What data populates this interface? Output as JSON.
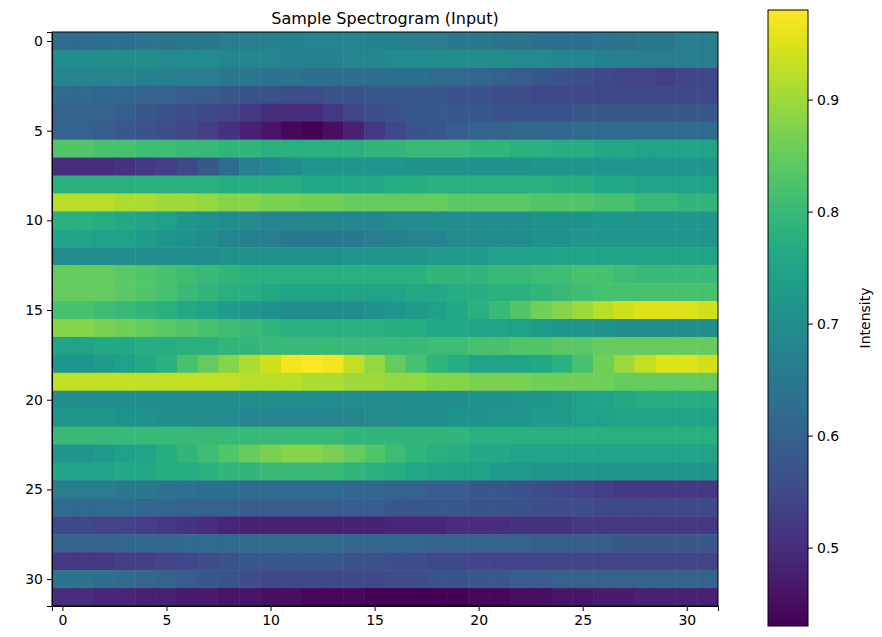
{
  "chart_data": {
    "type": "heatmap",
    "title": "Sample Spectrogram (Input)",
    "xlim": [
      -0.5,
      31.5
    ],
    "ylim": [
      31.5,
      -0.5
    ],
    "xticks": [
      0,
      5,
      10,
      15,
      20,
      25,
      30
    ],
    "yticks": [
      0,
      5,
      10,
      15,
      20,
      25,
      30
    ],
    "color": "viridis",
    "colorbar": {
      "label": "Intensity",
      "range": [
        0.43,
        0.98
      ],
      "ticks": [
        0.5,
        0.6,
        0.7,
        0.8,
        0.9
      ]
    },
    "values": [
      [
        0.62,
        0.62,
        0.63,
        0.63,
        0.64,
        0.64,
        0.65,
        0.65,
        0.66,
        0.66,
        0.67,
        0.67,
        0.68,
        0.68,
        0.68,
        0.67,
        0.67,
        0.66,
        0.66,
        0.65,
        0.65,
        0.64,
        0.64,
        0.63,
        0.63,
        0.63,
        0.64,
        0.64,
        0.65,
        0.65,
        0.66,
        0.66
      ],
      [
        0.7,
        0.7,
        0.7,
        0.7,
        0.7,
        0.69,
        0.69,
        0.69,
        0.68,
        0.68,
        0.68,
        0.67,
        0.67,
        0.67,
        0.68,
        0.68,
        0.69,
        0.69,
        0.7,
        0.7,
        0.7,
        0.7,
        0.69,
        0.69,
        0.68,
        0.68,
        0.67,
        0.67,
        0.66,
        0.66,
        0.66,
        0.66
      ],
      [
        0.68,
        0.68,
        0.68,
        0.68,
        0.67,
        0.67,
        0.66,
        0.66,
        0.65,
        0.65,
        0.64,
        0.64,
        0.63,
        0.63,
        0.63,
        0.63,
        0.63,
        0.63,
        0.62,
        0.62,
        0.61,
        0.6,
        0.59,
        0.58,
        0.57,
        0.56,
        0.55,
        0.54,
        0.54,
        0.53,
        0.54,
        0.55
      ],
      [
        0.62,
        0.62,
        0.61,
        0.61,
        0.6,
        0.6,
        0.59,
        0.59,
        0.58,
        0.57,
        0.57,
        0.56,
        0.56,
        0.57,
        0.57,
        0.58,
        0.58,
        0.58,
        0.58,
        0.57,
        0.57,
        0.56,
        0.56,
        0.55,
        0.55,
        0.55,
        0.55,
        0.55,
        0.55,
        0.55,
        0.55,
        0.55
      ],
      [
        0.6,
        0.6,
        0.6,
        0.59,
        0.58,
        0.57,
        0.56,
        0.55,
        0.54,
        0.52,
        0.5,
        0.5,
        0.5,
        0.52,
        0.54,
        0.56,
        0.57,
        0.58,
        0.58,
        0.58,
        0.58,
        0.57,
        0.57,
        0.57,
        0.57,
        0.58,
        0.58,
        0.58,
        0.58,
        0.58,
        0.58,
        0.58
      ],
      [
        0.6,
        0.6,
        0.59,
        0.58,
        0.57,
        0.56,
        0.55,
        0.53,
        0.51,
        0.48,
        0.46,
        0.44,
        0.43,
        0.45,
        0.48,
        0.52,
        0.55,
        0.57,
        0.58,
        0.59,
        0.6,
        0.6,
        0.61,
        0.61,
        0.61,
        0.62,
        0.62,
        0.62,
        0.62,
        0.62,
        0.62,
        0.62
      ],
      [
        0.83,
        0.83,
        0.82,
        0.82,
        0.81,
        0.81,
        0.8,
        0.8,
        0.79,
        0.79,
        0.78,
        0.78,
        0.78,
        0.78,
        0.78,
        0.79,
        0.79,
        0.8,
        0.8,
        0.8,
        0.79,
        0.79,
        0.78,
        0.78,
        0.77,
        0.77,
        0.76,
        0.76,
        0.75,
        0.75,
        0.75,
        0.75
      ],
      [
        0.5,
        0.5,
        0.5,
        0.51,
        0.52,
        0.53,
        0.55,
        0.58,
        0.62,
        0.66,
        0.68,
        0.7,
        0.72,
        0.72,
        0.72,
        0.72,
        0.72,
        0.71,
        0.71,
        0.71,
        0.71,
        0.71,
        0.71,
        0.72,
        0.72,
        0.72,
        0.72,
        0.72,
        0.72,
        0.72,
        0.72,
        0.72
      ],
      [
        0.78,
        0.78,
        0.78,
        0.78,
        0.78,
        0.78,
        0.78,
        0.78,
        0.77,
        0.77,
        0.77,
        0.77,
        0.76,
        0.76,
        0.76,
        0.76,
        0.77,
        0.77,
        0.78,
        0.78,
        0.78,
        0.78,
        0.78,
        0.78,
        0.77,
        0.77,
        0.76,
        0.76,
        0.75,
        0.75,
        0.75,
        0.75
      ],
      [
        0.92,
        0.92,
        0.92,
        0.91,
        0.91,
        0.9,
        0.9,
        0.89,
        0.88,
        0.88,
        0.87,
        0.87,
        0.86,
        0.86,
        0.85,
        0.85,
        0.85,
        0.85,
        0.85,
        0.84,
        0.84,
        0.84,
        0.84,
        0.83,
        0.83,
        0.83,
        0.82,
        0.82,
        0.8,
        0.8,
        0.79,
        0.79
      ],
      [
        0.78,
        0.78,
        0.77,
        0.76,
        0.75,
        0.74,
        0.72,
        0.71,
        0.7,
        0.69,
        0.68,
        0.68,
        0.68,
        0.68,
        0.68,
        0.68,
        0.69,
        0.69,
        0.7,
        0.7,
        0.7,
        0.7,
        0.7,
        0.71,
        0.71,
        0.71,
        0.72,
        0.72,
        0.72,
        0.72,
        0.72,
        0.72
      ],
      [
        0.75,
        0.75,
        0.74,
        0.74,
        0.73,
        0.72,
        0.71,
        0.7,
        0.68,
        0.67,
        0.66,
        0.65,
        0.65,
        0.65,
        0.65,
        0.66,
        0.67,
        0.68,
        0.68,
        0.69,
        0.69,
        0.7,
        0.7,
        0.71,
        0.71,
        0.72,
        0.72,
        0.72,
        0.72,
        0.72,
        0.72,
        0.72
      ],
      [
        0.7,
        0.7,
        0.7,
        0.7,
        0.7,
        0.7,
        0.7,
        0.7,
        0.71,
        0.71,
        0.71,
        0.71,
        0.71,
        0.71,
        0.72,
        0.72,
        0.72,
        0.72,
        0.73,
        0.73,
        0.73,
        0.74,
        0.74,
        0.74,
        0.75,
        0.75,
        0.75,
        0.75,
        0.75,
        0.75,
        0.75,
        0.75
      ],
      [
        0.85,
        0.85,
        0.85,
        0.84,
        0.83,
        0.82,
        0.81,
        0.8,
        0.79,
        0.78,
        0.78,
        0.78,
        0.78,
        0.78,
        0.78,
        0.78,
        0.78,
        0.78,
        0.79,
        0.79,
        0.79,
        0.8,
        0.8,
        0.81,
        0.81,
        0.82,
        0.82,
        0.81,
        0.8,
        0.8,
        0.8,
        0.8
      ],
      [
        0.85,
        0.85,
        0.85,
        0.84,
        0.83,
        0.82,
        0.8,
        0.79,
        0.78,
        0.77,
        0.76,
        0.75,
        0.75,
        0.75,
        0.75,
        0.75,
        0.75,
        0.76,
        0.76,
        0.77,
        0.77,
        0.78,
        0.78,
        0.79,
        0.8,
        0.81,
        0.82,
        0.82,
        0.82,
        0.82,
        0.82,
        0.82
      ],
      [
        0.82,
        0.82,
        0.81,
        0.8,
        0.79,
        0.78,
        0.76,
        0.75,
        0.73,
        0.72,
        0.71,
        0.7,
        0.7,
        0.7,
        0.7,
        0.71,
        0.72,
        0.73,
        0.74,
        0.76,
        0.78,
        0.8,
        0.83,
        0.86,
        0.88,
        0.9,
        0.92,
        0.94,
        0.95,
        0.95,
        0.95,
        0.94
      ],
      [
        0.88,
        0.88,
        0.87,
        0.86,
        0.85,
        0.84,
        0.83,
        0.82,
        0.81,
        0.8,
        0.79,
        0.78,
        0.78,
        0.78,
        0.78,
        0.78,
        0.77,
        0.77,
        0.76,
        0.76,
        0.75,
        0.75,
        0.74,
        0.73,
        0.72,
        0.72,
        0.71,
        0.7,
        0.7,
        0.7,
        0.7,
        0.7
      ],
      [
        0.75,
        0.75,
        0.76,
        0.76,
        0.77,
        0.77,
        0.78,
        0.78,
        0.79,
        0.79,
        0.8,
        0.8,
        0.8,
        0.8,
        0.8,
        0.8,
        0.8,
        0.8,
        0.81,
        0.81,
        0.82,
        0.82,
        0.83,
        0.83,
        0.84,
        0.84,
        0.85,
        0.85,
        0.85,
        0.85,
        0.85,
        0.85
      ],
      [
        0.72,
        0.72,
        0.73,
        0.74,
        0.76,
        0.78,
        0.82,
        0.85,
        0.88,
        0.91,
        0.94,
        0.97,
        0.98,
        0.97,
        0.93,
        0.89,
        0.85,
        0.82,
        0.79,
        0.77,
        0.75,
        0.75,
        0.75,
        0.76,
        0.78,
        0.82,
        0.86,
        0.9,
        0.93,
        0.95,
        0.95,
        0.94
      ],
      [
        0.93,
        0.93,
        0.93,
        0.93,
        0.93,
        0.93,
        0.93,
        0.93,
        0.93,
        0.92,
        0.92,
        0.92,
        0.91,
        0.91,
        0.9,
        0.9,
        0.89,
        0.89,
        0.88,
        0.88,
        0.87,
        0.87,
        0.87,
        0.86,
        0.86,
        0.86,
        0.86,
        0.85,
        0.85,
        0.85,
        0.85,
        0.85
      ],
      [
        0.7,
        0.7,
        0.7,
        0.7,
        0.7,
        0.7,
        0.7,
        0.7,
        0.7,
        0.7,
        0.7,
        0.7,
        0.7,
        0.69,
        0.69,
        0.69,
        0.69,
        0.7,
        0.7,
        0.7,
        0.71,
        0.71,
        0.72,
        0.72,
        0.73,
        0.74,
        0.75,
        0.76,
        0.77,
        0.77,
        0.77,
        0.77
      ],
      [
        0.72,
        0.72,
        0.72,
        0.71,
        0.71,
        0.7,
        0.7,
        0.69,
        0.69,
        0.68,
        0.68,
        0.68,
        0.68,
        0.68,
        0.68,
        0.69,
        0.69,
        0.7,
        0.7,
        0.71,
        0.71,
        0.72,
        0.72,
        0.73,
        0.73,
        0.74,
        0.74,
        0.75,
        0.75,
        0.75,
        0.75,
        0.75
      ],
      [
        0.8,
        0.8,
        0.8,
        0.8,
        0.8,
        0.8,
        0.8,
        0.8,
        0.8,
        0.8,
        0.8,
        0.8,
        0.8,
        0.8,
        0.79,
        0.79,
        0.79,
        0.79,
        0.79,
        0.79,
        0.78,
        0.78,
        0.78,
        0.78,
        0.78,
        0.78,
        0.78,
        0.78,
        0.78,
        0.78,
        0.78,
        0.78
      ],
      [
        0.72,
        0.72,
        0.73,
        0.74,
        0.75,
        0.77,
        0.79,
        0.81,
        0.83,
        0.85,
        0.87,
        0.88,
        0.88,
        0.87,
        0.85,
        0.83,
        0.81,
        0.79,
        0.78,
        0.77,
        0.76,
        0.76,
        0.75,
        0.75,
        0.75,
        0.75,
        0.75,
        0.75,
        0.75,
        0.75,
        0.75,
        0.75
      ],
      [
        0.75,
        0.75,
        0.75,
        0.76,
        0.76,
        0.77,
        0.77,
        0.78,
        0.79,
        0.79,
        0.8,
        0.8,
        0.8,
        0.8,
        0.79,
        0.78,
        0.77,
        0.76,
        0.75,
        0.74,
        0.74,
        0.73,
        0.73,
        0.72,
        0.72,
        0.72,
        0.72,
        0.72,
        0.72,
        0.72,
        0.72,
        0.72
      ],
      [
        0.66,
        0.66,
        0.66,
        0.65,
        0.65,
        0.64,
        0.64,
        0.63,
        0.63,
        0.62,
        0.62,
        0.62,
        0.62,
        0.62,
        0.61,
        0.61,
        0.6,
        0.6,
        0.59,
        0.59,
        0.58,
        0.58,
        0.57,
        0.56,
        0.55,
        0.54,
        0.53,
        0.52,
        0.52,
        0.52,
        0.52,
        0.52
      ],
      [
        0.62,
        0.62,
        0.62,
        0.62,
        0.61,
        0.61,
        0.6,
        0.6,
        0.6,
        0.59,
        0.59,
        0.59,
        0.59,
        0.59,
        0.59,
        0.59,
        0.58,
        0.58,
        0.58,
        0.58,
        0.57,
        0.57,
        0.57,
        0.56,
        0.56,
        0.56,
        0.55,
        0.55,
        0.55,
        0.55,
        0.55,
        0.55
      ],
      [
        0.55,
        0.55,
        0.54,
        0.54,
        0.53,
        0.52,
        0.51,
        0.5,
        0.49,
        0.48,
        0.48,
        0.48,
        0.48,
        0.48,
        0.48,
        0.48,
        0.49,
        0.49,
        0.49,
        0.5,
        0.5,
        0.5,
        0.51,
        0.51,
        0.51,
        0.52,
        0.52,
        0.52,
        0.52,
        0.52,
        0.52,
        0.52
      ],
      [
        0.6,
        0.6,
        0.6,
        0.61,
        0.61,
        0.61,
        0.62,
        0.62,
        0.62,
        0.62,
        0.62,
        0.62,
        0.62,
        0.62,
        0.61,
        0.61,
        0.61,
        0.61,
        0.6,
        0.6,
        0.6,
        0.6,
        0.6,
        0.59,
        0.59,
        0.59,
        0.59,
        0.58,
        0.58,
        0.58,
        0.58,
        0.58
      ],
      [
        0.52,
        0.52,
        0.52,
        0.53,
        0.53,
        0.54,
        0.55,
        0.56,
        0.57,
        0.58,
        0.58,
        0.58,
        0.58,
        0.58,
        0.57,
        0.57,
        0.56,
        0.56,
        0.55,
        0.55,
        0.54,
        0.54,
        0.54,
        0.54,
        0.54,
        0.54,
        0.54,
        0.54,
        0.54,
        0.54,
        0.54,
        0.54
      ],
      [
        0.64,
        0.64,
        0.63,
        0.62,
        0.61,
        0.6,
        0.59,
        0.58,
        0.57,
        0.56,
        0.55,
        0.55,
        0.55,
        0.55,
        0.55,
        0.55,
        0.56,
        0.56,
        0.57,
        0.57,
        0.58,
        0.58,
        0.59,
        0.59,
        0.6,
        0.6,
        0.6,
        0.6,
        0.6,
        0.6,
        0.6,
        0.6
      ],
      [
        0.5,
        0.5,
        0.49,
        0.49,
        0.48,
        0.48,
        0.47,
        0.47,
        0.46,
        0.46,
        0.45,
        0.45,
        0.44,
        0.44,
        0.44,
        0.43,
        0.43,
        0.43,
        0.43,
        0.43,
        0.44,
        0.44,
        0.45,
        0.45,
        0.46,
        0.46,
        0.47,
        0.47,
        0.48,
        0.48,
        0.48,
        0.48
      ]
    ]
  }
}
